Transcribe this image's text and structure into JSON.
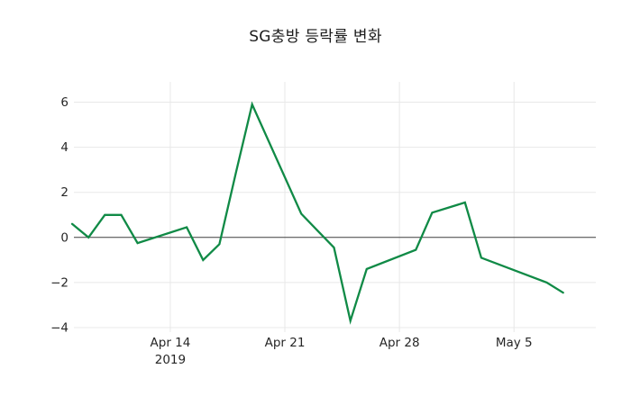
{
  "chart_data": {
    "type": "line",
    "title": "SG충방 등락률 변화",
    "xlabel": "",
    "ylabel": "",
    "grid": true,
    "zeroline": true,
    "legend": "none",
    "x_range": [
      "2019-04-08",
      "2019-05-10"
    ],
    "y_range": [
      -4.2,
      6.9
    ],
    "x": [
      "2019-04-08",
      "2019-04-09",
      "2019-04-10",
      "2019-04-11",
      "2019-04-12",
      "2019-04-15",
      "2019-04-16",
      "2019-04-17",
      "2019-04-18",
      "2019-04-19",
      "2019-04-22",
      "2019-04-23",
      "2019-04-24",
      "2019-04-25",
      "2019-04-26",
      "2019-04-29",
      "2019-04-30",
      "2019-05-02",
      "2019-05-03",
      "2019-05-07",
      "2019-05-08"
    ],
    "values": [
      0.6,
      0.0,
      1.0,
      1.0,
      -0.25,
      0.45,
      -1.0,
      -0.3,
      2.85,
      5.9,
      1.05,
      0.3,
      -0.45,
      -3.7,
      -1.4,
      -0.55,
      1.1,
      1.55,
      -0.9,
      -2.0,
      -2.45
    ],
    "x_ticks": [
      {
        "label": "Apr 14",
        "year": "2019",
        "date": "2019-04-14"
      },
      {
        "label": "Apr 21",
        "year": "",
        "date": "2019-04-21"
      },
      {
        "label": "Apr 28",
        "year": "",
        "date": "2019-04-28"
      },
      {
        "label": "May 5",
        "year": "",
        "date": "2019-05-05"
      }
    ],
    "y_ticks": [
      {
        "label": "6",
        "value": 6
      },
      {
        "label": "4",
        "value": 4
      },
      {
        "label": "2",
        "value": 2
      },
      {
        "label": "0",
        "value": 0
      },
      {
        "label": "−2",
        "value": -2
      },
      {
        "label": "−4",
        "value": -4
      }
    ],
    "colors": {
      "line": "#108a46",
      "grid": "#e8e8e8",
      "zeroline": "#3f3f3f",
      "tick_text": "#262626",
      "title_text": "#1c1c1c",
      "background": "#ffffff"
    }
  }
}
